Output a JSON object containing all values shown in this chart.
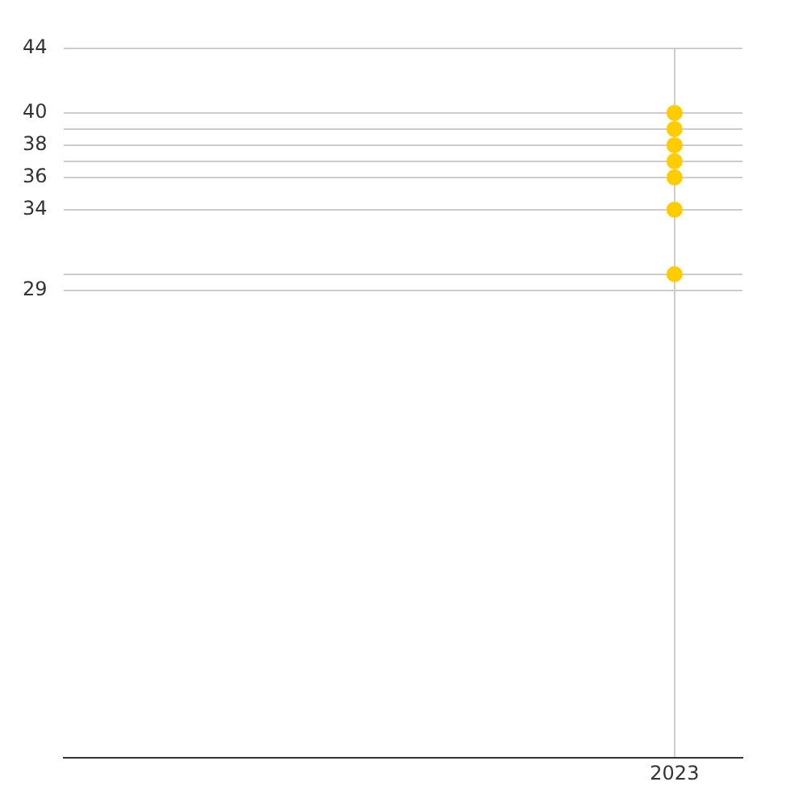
{
  "chart_data": {
    "type": "scatter",
    "categories": [
      null,
      null,
      null,
      null,
      "2023"
    ],
    "series": [
      {
        "color": "#ffcc00",
        "values": [
          null,
          null,
          null,
          null,
          40
        ]
      },
      {
        "color": "#ffcc00",
        "values": [
          null,
          null,
          null,
          null,
          39
        ]
      },
      {
        "color": "#ffcc00",
        "values": [
          null,
          null,
          null,
          null,
          38
        ]
      },
      {
        "color": "#ffcc00",
        "values": [
          null,
          null,
          null,
          null,
          37
        ]
      },
      {
        "color": "#ffcc00",
        "values": [
          null,
          null,
          null,
          null,
          36
        ]
      },
      {
        "color": "#ffcc00",
        "values": [
          null,
          null,
          null,
          null,
          34
        ]
      },
      {
        "color": "#ffcc00",
        "values": [
          null,
          null,
          null,
          null,
          30
        ]
      }
    ],
    "marker": "circle",
    "ylim": [
      0,
      44
    ],
    "yticks": [
      29,
      {
        "value": 30,
        "label": null
      },
      34,
      36,
      {
        "value": 37,
        "label": null
      },
      38,
      {
        "value": 39,
        "label": null
      },
      40,
      44
    ],
    "grid": true,
    "legend": false
  }
}
